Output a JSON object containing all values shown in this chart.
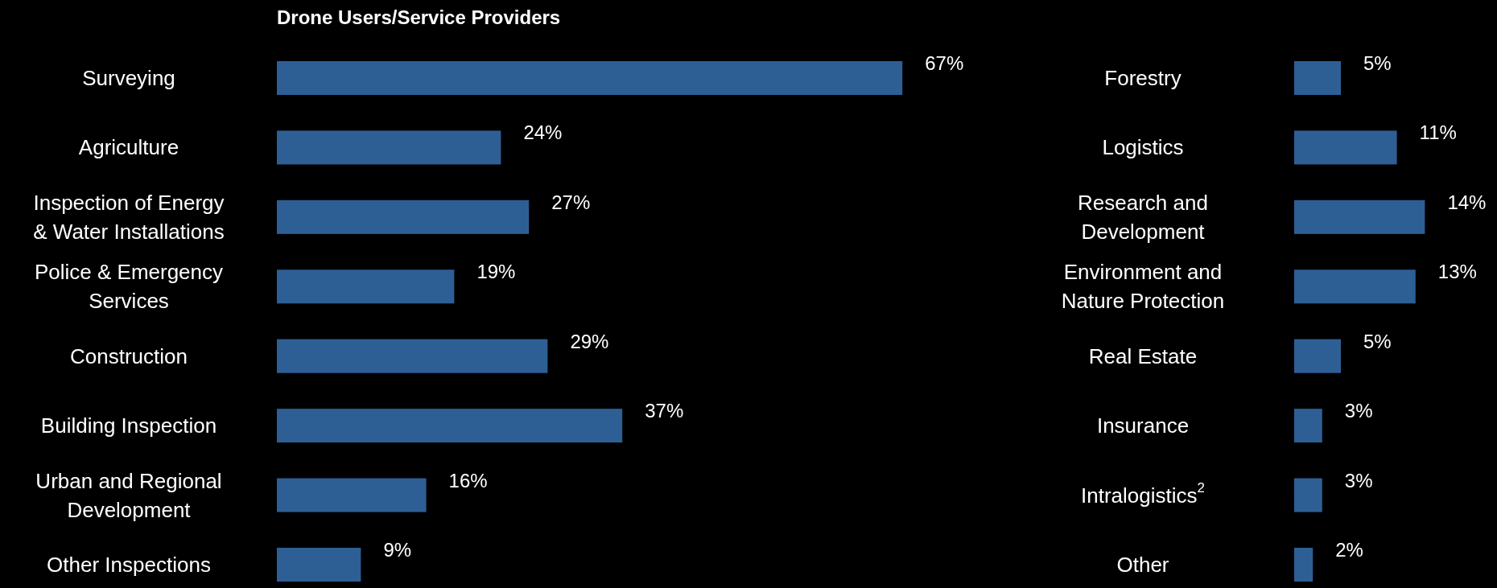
{
  "chart_data": [
    {
      "type": "bar",
      "orientation": "horizontal",
      "title": "Drone Users/Service Providers",
      "categories": [
        "Surveying",
        "Agriculture",
        "Inspection of Energy & Water Installations",
        "Police & Emergency Services",
        "Construction",
        "Building Inspection",
        "Urban and Regional Development",
        "Other Inspections"
      ],
      "values": [
        67,
        24,
        27,
        19,
        29,
        37,
        16,
        9
      ],
      "value_labels": [
        "67%",
        "24%",
        "27%",
        "19%",
        "29%",
        "37%",
        "16%",
        "9%"
      ],
      "color": "#2d5f95"
    },
    {
      "type": "bar",
      "orientation": "horizontal",
      "categories": [
        "Forestry",
        "Logistics",
        "Research and Development",
        "Environment and Nature Protection",
        "Real Estate",
        "Insurance",
        "Intralogistics$^{2}$",
        "Other"
      ],
      "values": [
        5,
        11,
        14,
        13,
        5,
        3,
        3,
        2
      ],
      "value_labels": [
        "5%",
        "11%",
        "14%",
        "13%",
        "5%",
        "3%",
        "3%",
        "2%"
      ],
      "color": "#2d5f95"
    }
  ]
}
